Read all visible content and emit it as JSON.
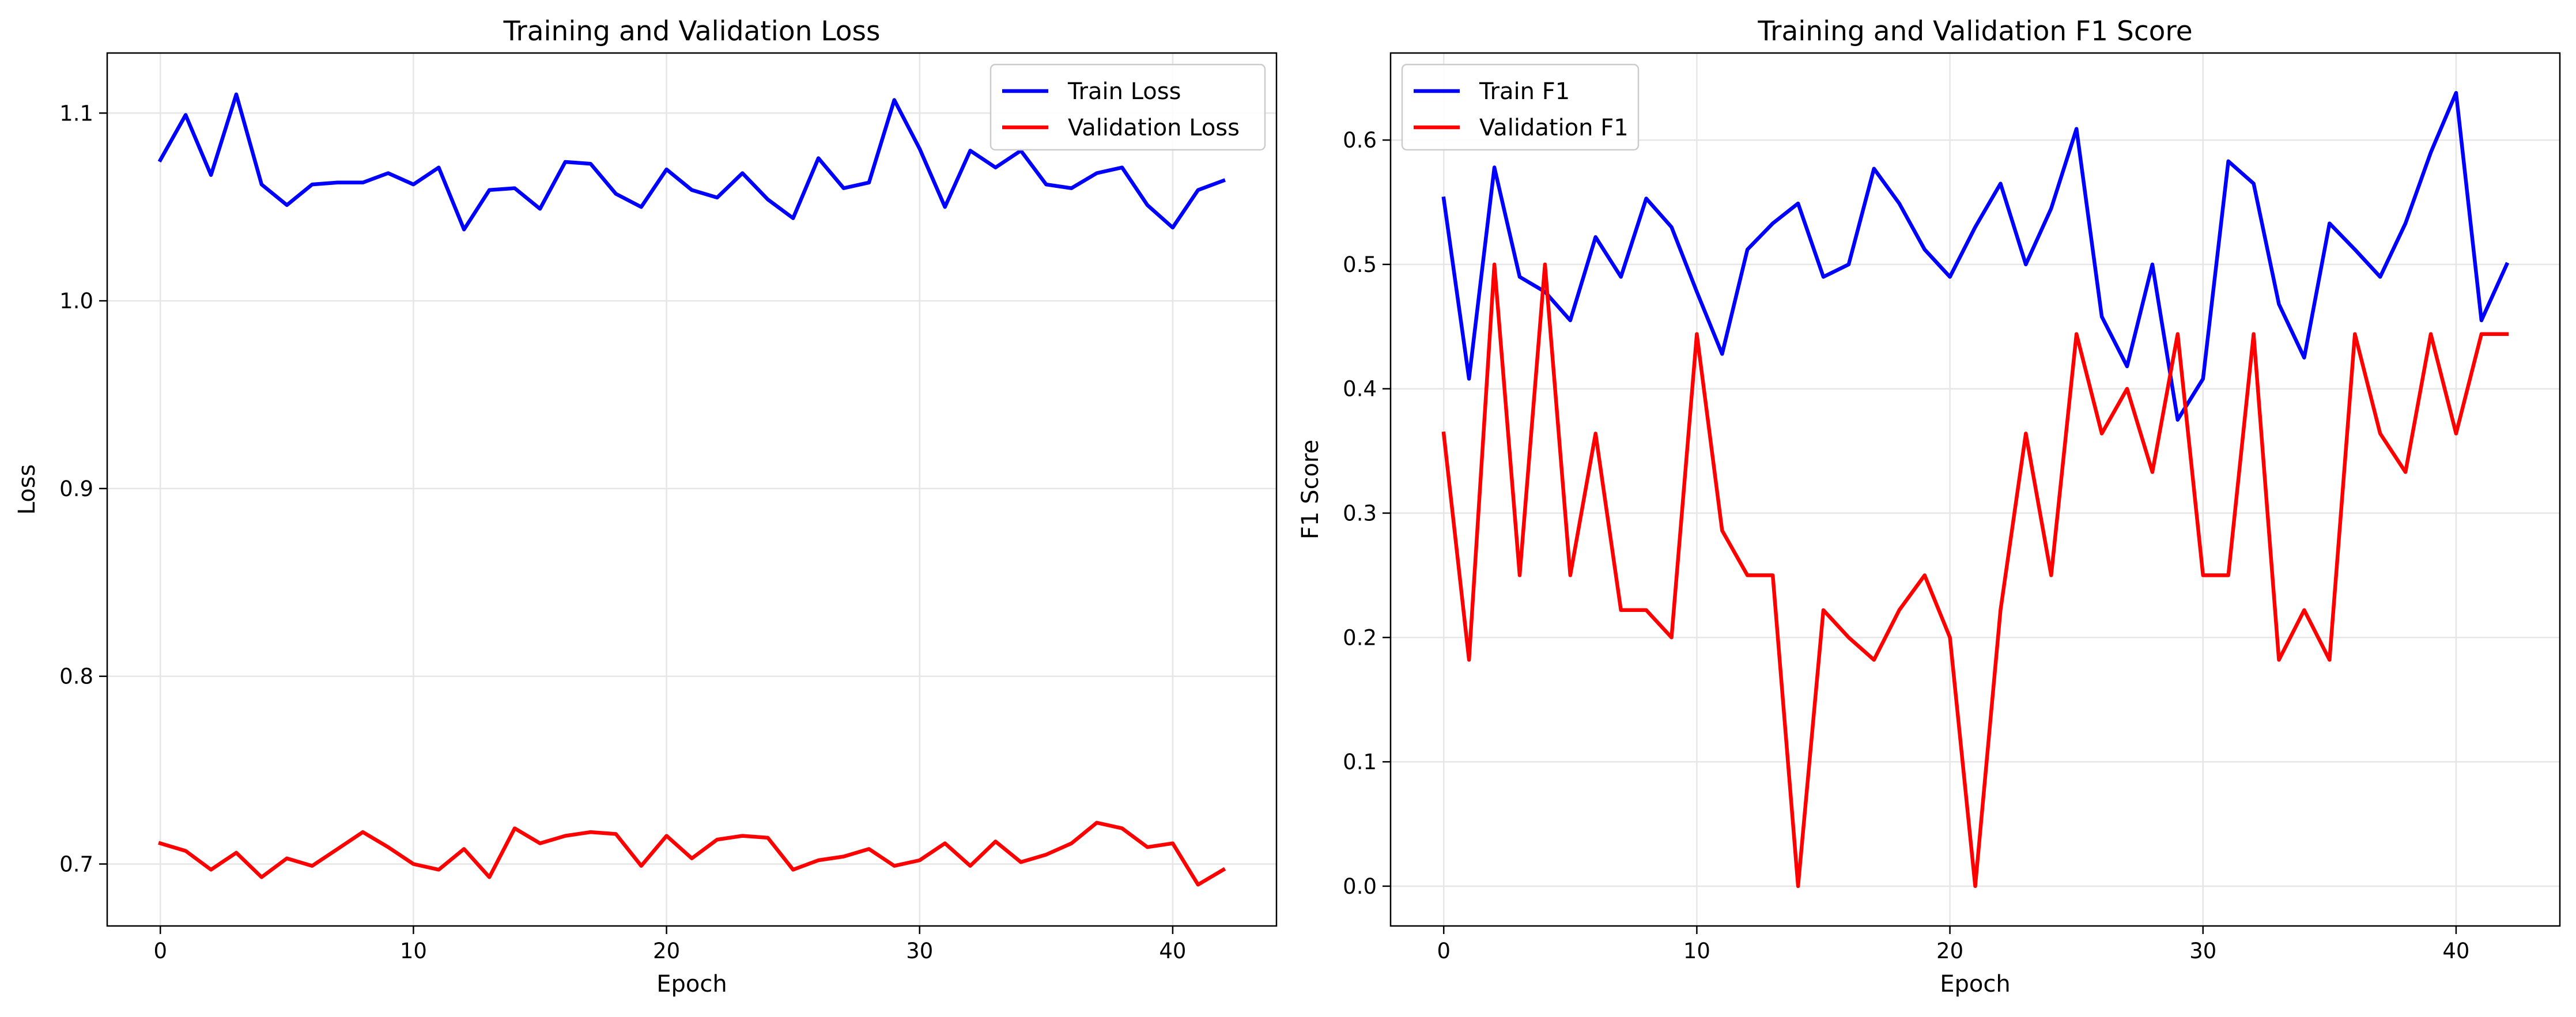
{
  "chart_data": [
    {
      "type": "line",
      "title": "Training and Validation Loss",
      "xlabel": "Epoch",
      "ylabel": "Loss",
      "xlim": [
        -2.1,
        44.1
      ],
      "ylim": [
        0.667,
        1.132
      ],
      "xticks": [
        0,
        10,
        20,
        30,
        40
      ],
      "yticks": [
        0.7,
        0.8,
        0.9,
        1.0,
        1.1
      ],
      "ytick_labels": [
        "0.7",
        "0.8",
        "0.9",
        "1.0",
        "1.1"
      ],
      "grid": true,
      "legend_position": "upper right",
      "x": [
        0,
        1,
        2,
        3,
        4,
        5,
        6,
        7,
        8,
        9,
        10,
        11,
        12,
        13,
        14,
        15,
        16,
        17,
        18,
        19,
        20,
        21,
        22,
        23,
        24,
        25,
        26,
        27,
        28,
        29,
        30,
        31,
        32,
        33,
        34,
        35,
        36,
        37,
        38,
        39,
        40,
        41,
        42
      ],
      "series": [
        {
          "name": "Train Loss",
          "color": "#0000ff",
          "values": [
            1.075,
            1.099,
            1.067,
            1.11,
            1.062,
            1.051,
            1.062,
            1.063,
            1.063,
            1.068,
            1.062,
            1.071,
            1.038,
            1.059,
            1.06,
            1.049,
            1.074,
            1.073,
            1.057,
            1.05,
            1.07,
            1.059,
            1.055,
            1.068,
            1.054,
            1.044,
            1.076,
            1.06,
            1.063,
            1.107,
            1.081,
            1.05,
            1.08,
            1.071,
            1.08,
            1.062,
            1.06,
            1.068,
            1.071,
            1.051,
            1.039,
            1.059,
            1.064
          ]
        },
        {
          "name": "Validation Loss",
          "color": "#ff0000",
          "values": [
            0.711,
            0.707,
            0.697,
            0.706,
            0.693,
            0.703,
            0.699,
            0.708,
            0.717,
            0.709,
            0.7,
            0.697,
            0.708,
            0.693,
            0.719,
            0.711,
            0.715,
            0.717,
            0.716,
            0.699,
            0.715,
            0.703,
            0.713,
            0.715,
            0.714,
            0.697,
            0.702,
            0.704,
            0.708,
            0.699,
            0.702,
            0.711,
            0.699,
            0.712,
            0.701,
            0.705,
            0.711,
            0.722,
            0.719,
            0.709,
            0.711,
            0.689,
            0.697
          ]
        }
      ]
    },
    {
      "type": "line",
      "title": "Training and Validation F1 Score",
      "xlabel": "Epoch",
      "ylabel": "F1 Score",
      "xlim": [
        -2.1,
        44.1
      ],
      "ylim": [
        -0.032,
        0.67
      ],
      "xticks": [
        0,
        10,
        20,
        30,
        40
      ],
      "yticks": [
        0.0,
        0.1,
        0.2,
        0.3,
        0.4,
        0.5,
        0.6
      ],
      "ytick_labels": [
        "0.0",
        "0.1",
        "0.2",
        "0.3",
        "0.4",
        "0.5",
        "0.6"
      ],
      "grid": true,
      "legend_position": "upper left",
      "x": [
        0,
        1,
        2,
        3,
        4,
        5,
        6,
        7,
        8,
        9,
        10,
        11,
        12,
        13,
        14,
        15,
        16,
        17,
        18,
        19,
        20,
        21,
        22,
        23,
        24,
        25,
        26,
        27,
        28,
        29,
        30,
        31,
        32,
        33,
        34,
        35,
        36,
        37,
        38,
        39,
        40,
        41,
        42
      ],
      "series": [
        {
          "name": "Train F1",
          "color": "#0000ff",
          "values": [
            0.553,
            0.408,
            0.578,
            0.49,
            0.478,
            0.455,
            0.522,
            0.49,
            0.553,
            0.53,
            0.478,
            0.428,
            0.512,
            0.533,
            0.549,
            0.49,
            0.5,
            0.577,
            0.549,
            0.512,
            0.49,
            0.53,
            0.565,
            0.5,
            0.545,
            0.609,
            0.458,
            0.418,
            0.5,
            0.375,
            0.408,
            0.583,
            0.565,
            0.468,
            0.425,
            0.533,
            0.512,
            0.49,
            0.533,
            0.59,
            0.638,
            0.455,
            0.5
          ]
        },
        {
          "name": "Validation F1",
          "color": "#ff0000",
          "values": [
            0.364,
            0.182,
            0.5,
            0.25,
            0.5,
            0.25,
            0.364,
            0.222,
            0.222,
            0.2,
            0.444,
            0.286,
            0.25,
            0.25,
            0.0,
            0.222,
            0.2,
            0.182,
            0.222,
            0.25,
            0.2,
            0.0,
            0.222,
            0.364,
            0.25,
            0.444,
            0.364,
            0.4,
            0.333,
            0.444,
            0.25,
            0.25,
            0.444,
            0.182,
            0.222,
            0.182,
            0.444,
            0.364,
            0.333,
            0.444,
            0.364,
            0.444,
            0.444
          ]
        }
      ]
    }
  ]
}
